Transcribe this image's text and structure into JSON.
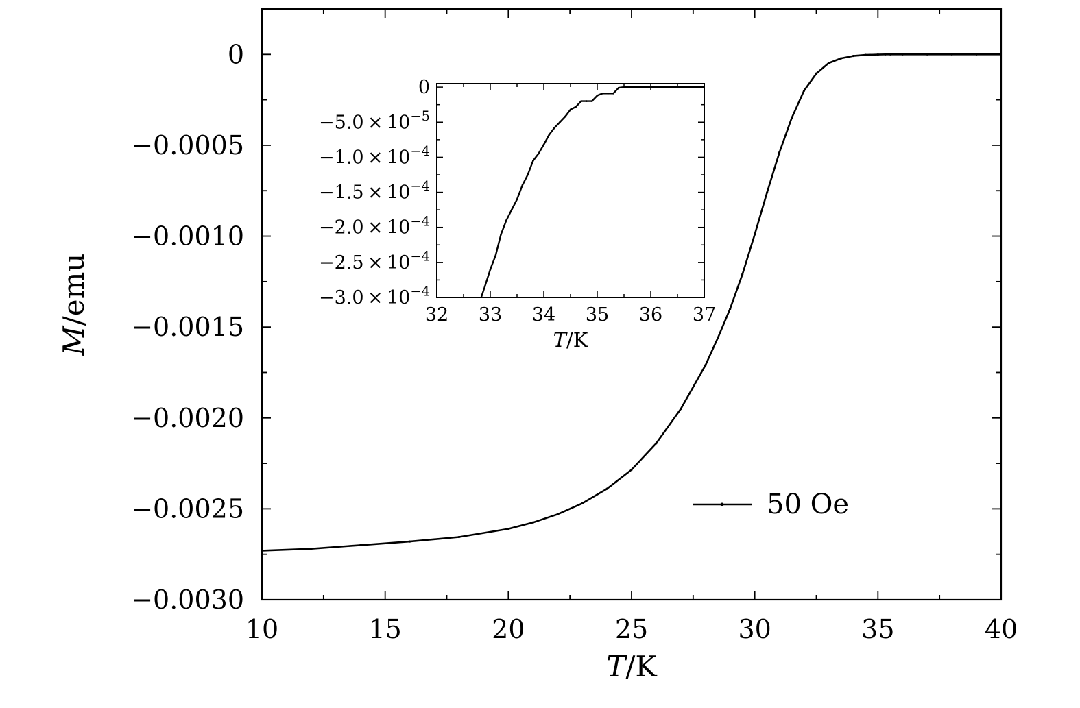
{
  "chart_data": [
    {
      "type": "line",
      "role": "main",
      "xlabel": {
        "var": "T",
        "unit": "/K"
      },
      "ylabel": {
        "var": "M",
        "unit": "/emu"
      },
      "xlim": [
        10,
        40
      ],
      "ylim": [
        -0.003,
        0.00025
      ],
      "x_ticks": [
        10,
        15,
        20,
        25,
        30,
        35,
        40
      ],
      "x_tick_labels": [
        "10",
        "15",
        "20",
        "25",
        "30",
        "35",
        "40"
      ],
      "y_ticks": [
        0,
        -0.0005,
        -0.001,
        -0.0015,
        -0.002,
        -0.0025,
        -0.003
      ],
      "y_tick_labels": [
        "0",
        "−0.0005",
        "−0.0010",
        "−0.0015",
        "−0.0020",
        "−0.0025",
        "−0.0030"
      ],
      "grid": false,
      "legend_position": "lower-right",
      "series": [
        {
          "name": "50 Oe",
          "x": [
            10,
            12,
            14,
            16,
            18,
            20,
            21,
            22,
            23,
            24,
            25,
            26,
            27,
            28,
            28.5,
            29,
            29.5,
            30,
            30.5,
            31,
            31.5,
            32,
            32.5,
            33,
            33.5,
            34,
            34.5,
            35,
            35.3,
            35.5,
            36,
            37,
            38,
            39,
            40
          ],
          "y": [
            -0.00273,
            -0.00272,
            -0.0027,
            -0.00268,
            -0.002655,
            -0.00261,
            -0.002575,
            -0.00253,
            -0.00247,
            -0.00239,
            -0.002285,
            -0.00214,
            -0.00195,
            -0.00171,
            -0.00156,
            -0.0014,
            -0.00121,
            -0.00099,
            -0.00076,
            -0.00054,
            -0.00035,
            -0.0002,
            -0.000105,
            -4.8e-05,
            -2.2e-05,
            -8.5e-06,
            -3e-06,
            -1e-06,
            0,
            0,
            0,
            0,
            0,
            0,
            0
          ]
        }
      ]
    },
    {
      "type": "line",
      "role": "inset",
      "xlabel": {
        "var": "T",
        "unit": "/K"
      },
      "ylabel": "",
      "xlim": [
        32,
        37
      ],
      "ylim": [
        -0.0003,
        5e-06
      ],
      "x_ticks": [
        32,
        33,
        34,
        35,
        36,
        37
      ],
      "x_tick_labels": [
        "32",
        "33",
        "34",
        "35",
        "36",
        "37"
      ],
      "y_ticks": [
        0,
        -5e-05,
        -0.0001,
        -0.00015,
        -0.0002,
        -0.00025,
        -0.0003
      ],
      "y_tick_labels": [
        {
          "mant": "0",
          "exp": ""
        },
        {
          "mant": "−5.0 × 10",
          "exp": "−5"
        },
        {
          "mant": "−1.0 × 10",
          "exp": "−4"
        },
        {
          "mant": "−1.5 × 10",
          "exp": "−4"
        },
        {
          "mant": "−2.0 × 10",
          "exp": "−4"
        },
        {
          "mant": "−2.5 × 10",
          "exp": "−4"
        },
        {
          "mant": "−3.0 × 10",
          "exp": "−4"
        }
      ],
      "grid": false,
      "series": [
        {
          "x": [
            32.83,
            32.9,
            33.0,
            33.1,
            33.2,
            33.3,
            33.4,
            33.5,
            33.6,
            33.7,
            33.8,
            33.9,
            34.0,
            34.1,
            34.2,
            34.3,
            34.4,
            34.5,
            34.6,
            34.7,
            34.8,
            34.9,
            35.0,
            35.1,
            35.2,
            35.3,
            35.4,
            35.5,
            36.0,
            36.5,
            37.0
          ],
          "y": [
            -0.0003,
            -0.000284,
            -0.00026,
            -0.00024,
            -0.00021,
            -0.00019,
            -0.000175,
            -0.00016,
            -0.00014,
            -0.000125,
            -0.000105,
            -9.5e-05,
            -8.2e-05,
            -6.8e-05,
            -5.8e-05,
            -5e-05,
            -4.2e-05,
            -3.2e-05,
            -2.8e-05,
            -2e-05,
            -2e-05,
            -2e-05,
            -1.2e-05,
            -9e-06,
            -9e-06,
            -9e-06,
            -1e-06,
            0,
            0,
            0,
            0
          ]
        }
      ]
    }
  ]
}
